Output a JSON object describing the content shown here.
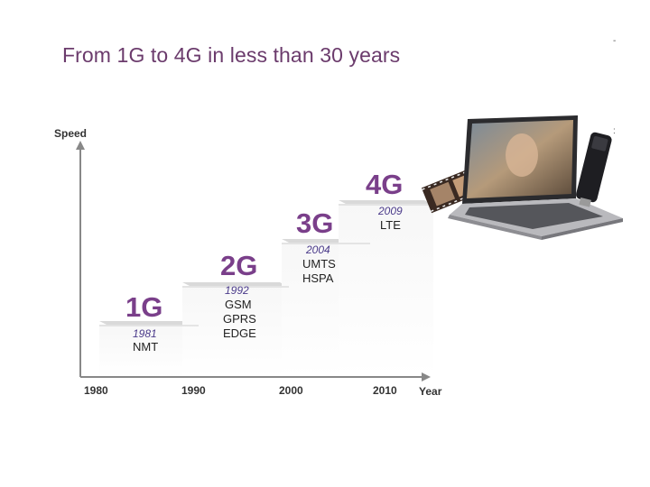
{
  "title": "From 1G to 4G in less than 30 years",
  "axes": {
    "y_label": "Speed",
    "x_label": "Year",
    "x_ticks": [
      "1980",
      "1990",
      "2000",
      "2010"
    ]
  },
  "generations": [
    {
      "name": "1G",
      "year": "1981",
      "techs": [
        "NMT"
      ]
    },
    {
      "name": "2G",
      "year": "1992",
      "techs": [
        "GSM",
        "GPRS",
        "EDGE"
      ]
    },
    {
      "name": "3G",
      "year": "2004",
      "techs": [
        "UMTS",
        "HSPA"
      ]
    },
    {
      "name": "4G",
      "year": "2009",
      "techs": [
        "LTE"
      ]
    }
  ],
  "colors": {
    "title": "#6b3b6c",
    "generation": "#7a3f8a",
    "year": "#4a3a8a"
  },
  "icons": [
    "laptop-icon",
    "usb-modem-icon",
    "film-strip-icon"
  ]
}
